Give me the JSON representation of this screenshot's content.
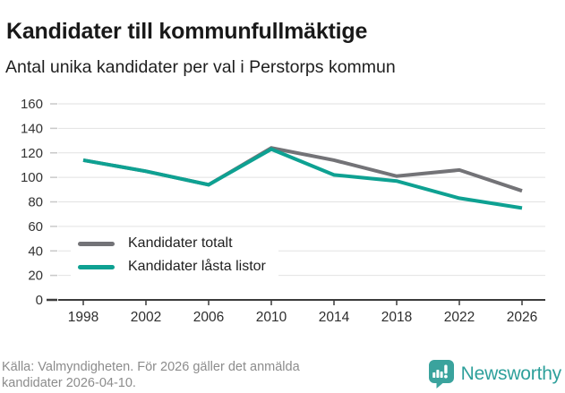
{
  "header": {
    "title": "Kandidater till kommunfullmäktige",
    "subtitle": "Antal unika kandidater per val i Perstorps kommun"
  },
  "colors": {
    "total": "#737377",
    "locked": "#0ea192",
    "grid": "#e2e2e2",
    "axis": "#3b3b3b",
    "tick_light": "#c9c9c9",
    "axis_label": "#333333",
    "brand_teal": "#3aa39d"
  },
  "chart_data": {
    "type": "line",
    "categories": [
      "1998",
      "2002",
      "2006",
      "2010",
      "2014",
      "2018",
      "2022",
      "2026"
    ],
    "series": [
      {
        "name": "Kandidater totalt",
        "color_key": "total",
        "values": [
          114,
          105,
          94,
          124,
          114,
          101,
          106,
          89
        ]
      },
      {
        "name": "Kandidater låsta listor",
        "color_key": "locked",
        "values": [
          114,
          105,
          94,
          123,
          102,
          97,
          83,
          75
        ]
      }
    ],
    "ylim": [
      0,
      160
    ],
    "ytick_step": 20,
    "grid": "horizontal",
    "legend_position": "inside-bottom-left"
  },
  "footer": {
    "source_lines": [
      "Källa: Valmyndigheten. För 2026 gäller det anmälda",
      "kandidater 2026-04-10."
    ],
    "brand": "Newsworthy"
  }
}
